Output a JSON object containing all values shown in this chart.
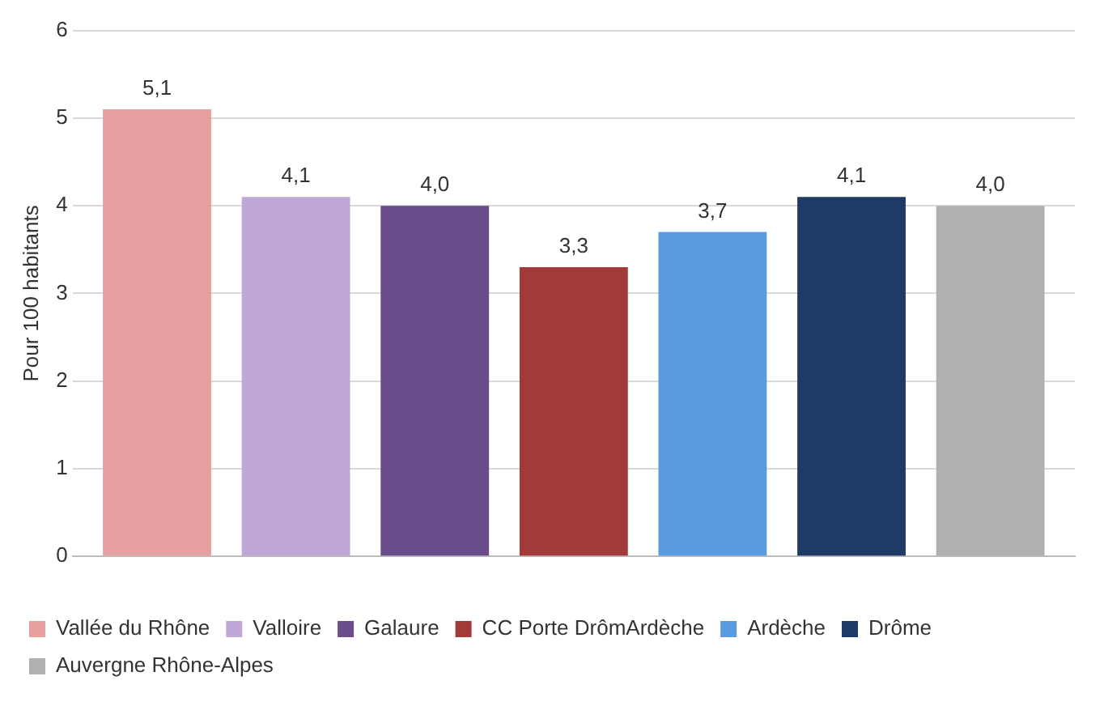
{
  "chart_data": {
    "type": "bar",
    "ylabel": "Pour 100 habitants",
    "categories": [
      null
    ],
    "series": [
      {
        "name": "Vallée du Rhône",
        "color": "#e6a0a0",
        "values": [
          5.1
        ],
        "value_labels": [
          "5,1"
        ]
      },
      {
        "name": "Valloire",
        "color": "#bfa8d8",
        "values": [
          4.1
        ],
        "value_labels": [
          "4,1"
        ]
      },
      {
        "name": "Galaure",
        "color": "#6a4c8a",
        "values": [
          4.0
        ],
        "value_labels": [
          "4,0"
        ]
      },
      {
        "name": "CC Porte DrômArdèche",
        "color": "#a33a3a",
        "values": [
          3.3
        ],
        "value_labels": [
          "3,3"
        ]
      },
      {
        "name": "Ardèche",
        "color": "#5a9be0",
        "values": [
          3.7
        ],
        "value_labels": [
          "3,7"
        ]
      },
      {
        "name": "Drôme",
        "color": "#1e3a66",
        "values": [
          4.1
        ],
        "value_labels": [
          "4,1"
        ]
      },
      {
        "name": "Auvergne Rhône-Alpes",
        "color": "#b0b0b0",
        "values": [
          4.0
        ],
        "value_labels": [
          "4,0"
        ]
      }
    ],
    "ylim": [
      0,
      6
    ],
    "yticks": [
      0,
      1,
      2,
      3,
      4,
      5,
      6
    ],
    "grid": "y",
    "legend": "bottom"
  }
}
